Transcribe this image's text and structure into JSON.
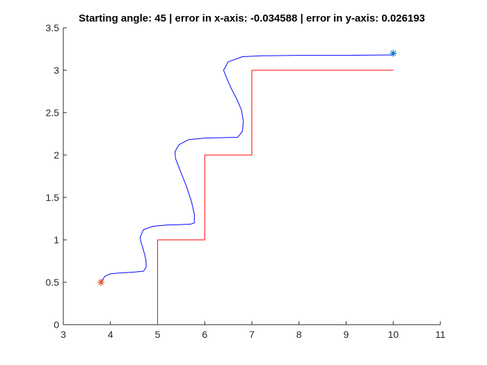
{
  "chart_data": {
    "type": "line",
    "title": "Starting angle: 45 | error in x-axis: -0.034588 | error in y-axis: 0.026193",
    "xlabel": "",
    "ylabel": "",
    "xlim": [
      3,
      11
    ],
    "ylim": [
      0,
      3.5
    ],
    "x_ticks": [
      3,
      4,
      5,
      6,
      7,
      8,
      9,
      10,
      11
    ],
    "y_ticks": [
      0,
      0.5,
      1,
      1.5,
      2,
      2.5,
      3,
      3.5
    ],
    "x_tick_labels": [
      "3",
      "4",
      "5",
      "6",
      "7",
      "8",
      "9",
      "10",
      "11"
    ],
    "y_tick_labels": [
      "0",
      "0.5",
      "1",
      "1.5",
      "2",
      "2.5",
      "3",
      "3.5"
    ],
    "grid": false,
    "legend": "none",
    "series": [
      {
        "color": "#ff0000",
        "points": [
          [
            5,
            0
          ],
          [
            5,
            1
          ],
          [
            6,
            1
          ],
          [
            6,
            2
          ],
          [
            7,
            2
          ],
          [
            7,
            3
          ],
          [
            10,
            3
          ]
        ]
      },
      {
        "color": "#0000ff",
        "points": [
          [
            3.8,
            0.5
          ],
          [
            3.88,
            0.57
          ],
          [
            4.0,
            0.6
          ],
          [
            4.2,
            0.61
          ],
          [
            4.5,
            0.62
          ],
          [
            4.7,
            0.63
          ],
          [
            4.76,
            0.68
          ],
          [
            4.75,
            0.77
          ],
          [
            4.7,
            0.88
          ],
          [
            4.65,
            0.97
          ],
          [
            4.63,
            1.03
          ],
          [
            4.7,
            1.12
          ],
          [
            4.9,
            1.16
          ],
          [
            5.2,
            1.175
          ],
          [
            5.5,
            1.18
          ],
          [
            5.7,
            1.185
          ],
          [
            5.78,
            1.2
          ],
          [
            5.78,
            1.3
          ],
          [
            5.72,
            1.45
          ],
          [
            5.6,
            1.65
          ],
          [
            5.47,
            1.83
          ],
          [
            5.38,
            1.96
          ],
          [
            5.37,
            2.04
          ],
          [
            5.45,
            2.12
          ],
          [
            5.65,
            2.18
          ],
          [
            6.0,
            2.2
          ],
          [
            6.4,
            2.205
          ],
          [
            6.7,
            2.21
          ],
          [
            6.8,
            2.28
          ],
          [
            6.82,
            2.4
          ],
          [
            6.78,
            2.53
          ],
          [
            6.68,
            2.66
          ],
          [
            6.55,
            2.8
          ],
          [
            6.45,
            2.93
          ],
          [
            6.4,
            3.0
          ],
          [
            6.5,
            3.1
          ],
          [
            6.8,
            3.16
          ],
          [
            7.2,
            3.17
          ],
          [
            8.0,
            3.175
          ],
          [
            9.0,
            3.175
          ],
          [
            10.0,
            3.18
          ]
        ]
      }
    ],
    "markers": [
      {
        "x": 3.8,
        "y": 0.5,
        "symbol": "*",
        "color": "#d95319"
      },
      {
        "x": 10.0,
        "y": 3.2,
        "symbol": "*",
        "color": "#0072bd"
      }
    ]
  }
}
